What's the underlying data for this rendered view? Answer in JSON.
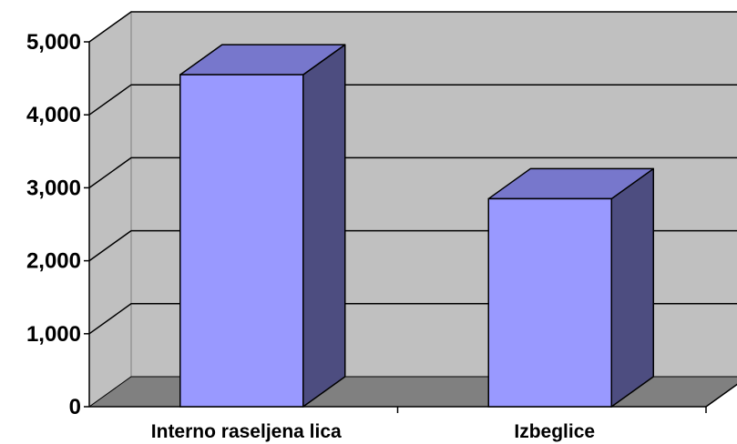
{
  "chart_data": {
    "type": "bar",
    "style": "3d-column",
    "categories": [
      "Interno raseljena lica",
      "Izbeglice"
    ],
    "values": [
      4550,
      2850
    ],
    "ylim": [
      0,
      5000
    ],
    "y_ticks": [
      "0",
      "1,000",
      "2,000",
      "3,000",
      "4,000",
      "5,000"
    ],
    "grid": true,
    "legend": "none",
    "colors": {
      "wall": "#c0c0c0",
      "floor": "#808080",
      "bar_front": "#9999ff",
      "bar_top": "#7777cc",
      "bar_side": "#4d4d80",
      "grid": "#000000"
    }
  }
}
